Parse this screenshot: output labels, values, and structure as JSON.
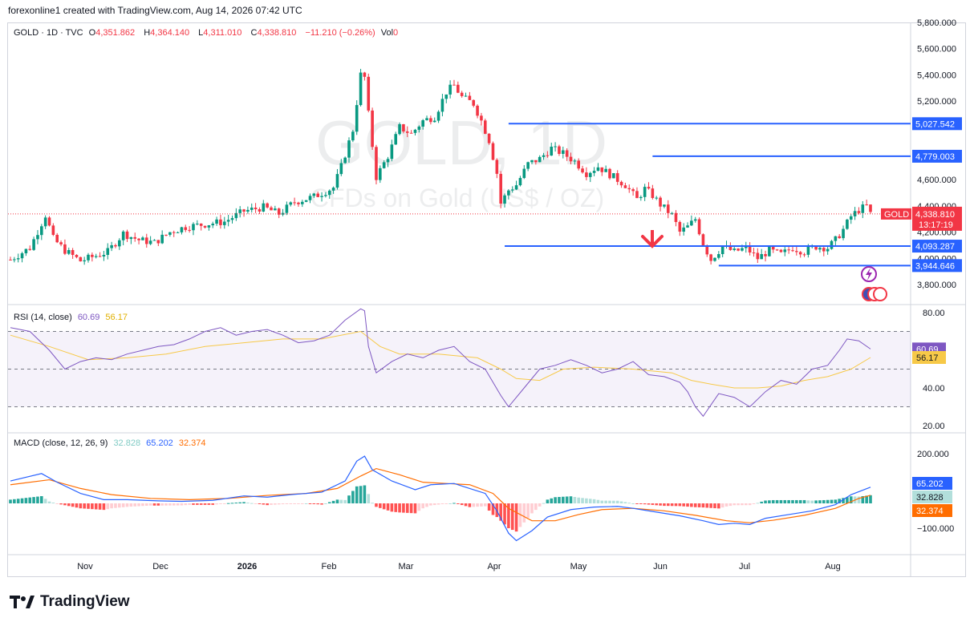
{
  "header": {
    "attribution": "forexonline1 created with TradingView.com, Aug 14, 2026 07:42 UTC"
  },
  "main_legend": {
    "symbol": "GOLD · 1D · TVC",
    "open_label": "O",
    "open": "4,351.862",
    "high_label": "H",
    "high": "4,364.140",
    "low_label": "L",
    "low": "4,311.010",
    "close_label": "C",
    "close": "4,338.810",
    "change": "−11.210 (−0.26%)",
    "vol_label": "Vol",
    "vol": "0"
  },
  "watermark": {
    "line1": "GOLD, 1D",
    "line2": "CFDs on Gold (US$ / OZ)"
  },
  "rsi_legend": {
    "label": "RSI (14, close)",
    "value1": "60.69",
    "value2": "56.17"
  },
  "macd_legend": {
    "label": "MACD (close, 12, 26, 9)",
    "value1": "32.828",
    "value2": "65.202",
    "value3": "32.374"
  },
  "footer": {
    "brand": "TradingView"
  },
  "colors": {
    "up": "#089981",
    "down": "#f23645",
    "hline": "#2962ff",
    "rsi": "#7e57c2",
    "rsi_ma": "#f7c948",
    "macd": "#2962ff",
    "signal": "#ff6d00"
  },
  "chart_data": [
    {
      "type": "candlestick",
      "title": "GOLD · 1D · TVC",
      "x_ticks": [
        "Nov",
        "Dec",
        "2026",
        "Feb",
        "Mar",
        "Apr",
        "May",
        "Jun",
        "Jul",
        "Aug"
      ],
      "y_ticks": [
        "5,800.000",
        "5,600.000",
        "5,400.000",
        "5,200.000",
        "4,800.000",
        "4,600.000",
        "4,400.000",
        "4,200.000",
        "4,000.000",
        "3,800.000"
      ],
      "ylim": [
        3800,
        5800
      ],
      "price_path": [
        [
          0,
          3990
        ],
        [
          5,
          4080
        ],
        [
          9,
          4330
        ],
        [
          11,
          4150
        ],
        [
          14,
          4060
        ],
        [
          18,
          3980
        ],
        [
          21,
          4010
        ],
        [
          25,
          4050
        ],
        [
          29,
          4190
        ],
        [
          33,
          4140
        ],
        [
          37,
          4120
        ],
        [
          41,
          4200
        ],
        [
          45,
          4240
        ],
        [
          50,
          4260
        ],
        [
          55,
          4280
        ],
        [
          60,
          4360
        ],
        [
          65,
          4390
        ],
        [
          69,
          4340
        ],
        [
          73,
          4430
        ],
        [
          78,
          4470
        ],
        [
          83,
          4540
        ],
        [
          85,
          4700
        ],
        [
          88,
          4980
        ],
        [
          90,
          5400
        ],
        [
          91,
          5380
        ],
        [
          92,
          5100
        ],
        [
          94,
          4620
        ],
        [
          97,
          4780
        ],
        [
          100,
          5000
        ],
        [
          103,
          4950
        ],
        [
          106,
          5050
        ],
        [
          109,
          5080
        ],
        [
          112,
          5270
        ],
        [
          114,
          5320
        ],
        [
          116,
          5230
        ],
        [
          119,
          5180
        ],
        [
          121,
          5050
        ],
        [
          123,
          4900
        ],
        [
          125,
          4650
        ],
        [
          126,
          4420
        ],
        [
          128,
          4520
        ],
        [
          130,
          4560
        ],
        [
          133,
          4720
        ],
        [
          136,
          4760
        ],
        [
          139,
          4840
        ],
        [
          142,
          4800
        ],
        [
          145,
          4740
        ],
        [
          148,
          4650
        ],
        [
          151,
          4700
        ],
        [
          155,
          4620
        ],
        [
          158,
          4560
        ],
        [
          161,
          4450
        ],
        [
          163,
          4530
        ],
        [
          165,
          4480
        ],
        [
          167,
          4410
        ],
        [
          170,
          4330
        ],
        [
          172,
          4200
        ],
        [
          174,
          4240
        ],
        [
          176,
          4300
        ],
        [
          178,
          4110
        ],
        [
          180,
          3990
        ],
        [
          183,
          4090
        ],
        [
          186,
          4050
        ],
        [
          189,
          4080
        ],
        [
          192,
          4000
        ],
        [
          195,
          4060
        ],
        [
          198,
          4030
        ],
        [
          201,
          4080
        ],
        [
          204,
          4050
        ],
        [
          207,
          4090
        ],
        [
          210,
          4080
        ],
        [
          212,
          4140
        ],
        [
          214,
          4220
        ],
        [
          216,
          4320
        ],
        [
          218,
          4370
        ],
        [
          220,
          4400
        ],
        [
          221,
          4339
        ]
      ],
      "horizontal_levels": [
        "5,027.542",
        "4,779.003",
        "4,093.287",
        "3,944.646"
      ],
      "last_price": "4,338.810",
      "last_label": "GOLD",
      "countdown": "13:17:19"
    },
    {
      "type": "line",
      "name": "RSI (14, close)",
      "y_ticks": [
        "80.00",
        "40.00",
        "20.00"
      ],
      "ylim": [
        20,
        80
      ],
      "bands": [
        70,
        50,
        30
      ],
      "rsi": [
        [
          0,
          72
        ],
        [
          5,
          70
        ],
        [
          10,
          60
        ],
        [
          14,
          50
        ],
        [
          18,
          54
        ],
        [
          22,
          56
        ],
        [
          26,
          55
        ],
        [
          30,
          58
        ],
        [
          34,
          60
        ],
        [
          38,
          62
        ],
        [
          42,
          63
        ],
        [
          46,
          66
        ],
        [
          50,
          70
        ],
        [
          54,
          72
        ],
        [
          58,
          68
        ],
        [
          62,
          70
        ],
        [
          66,
          71
        ],
        [
          70,
          68
        ],
        [
          74,
          64
        ],
        [
          78,
          65
        ],
        [
          82,
          68
        ],
        [
          86,
          76
        ],
        [
          90,
          82
        ],
        [
          91,
          81
        ],
        [
          92,
          62
        ],
        [
          94,
          48
        ],
        [
          98,
          54
        ],
        [
          102,
          58
        ],
        [
          106,
          56
        ],
        [
          110,
          60
        ],
        [
          114,
          62
        ],
        [
          118,
          54
        ],
        [
          122,
          50
        ],
        [
          126,
          36
        ],
        [
          128,
          30
        ],
        [
          132,
          40
        ],
        [
          136,
          50
        ],
        [
          140,
          52
        ],
        [
          144,
          55
        ],
        [
          148,
          52
        ],
        [
          152,
          48
        ],
        [
          156,
          50
        ],
        [
          160,
          54
        ],
        [
          164,
          47
        ],
        [
          168,
          46
        ],
        [
          172,
          43
        ],
        [
          174,
          38
        ],
        [
          176,
          30
        ],
        [
          178,
          25
        ],
        [
          182,
          37
        ],
        [
          186,
          35
        ],
        [
          190,
          30
        ],
        [
          194,
          38
        ],
        [
          198,
          44
        ],
        [
          202,
          42
        ],
        [
          206,
          50
        ],
        [
          210,
          52
        ],
        [
          213,
          60
        ],
        [
          215,
          66
        ],
        [
          218,
          65
        ],
        [
          221,
          60.69
        ]
      ],
      "rsi_ma": [
        [
          0,
          68
        ],
        [
          10,
          62
        ],
        [
          20,
          55
        ],
        [
          30,
          56
        ],
        [
          40,
          58
        ],
        [
          50,
          62
        ],
        [
          60,
          64
        ],
        [
          70,
          66
        ],
        [
          80,
          66
        ],
        [
          90,
          70
        ],
        [
          95,
          62
        ],
        [
          100,
          58
        ],
        [
          110,
          58
        ],
        [
          120,
          56
        ],
        [
          126,
          50
        ],
        [
          130,
          45
        ],
        [
          136,
          44
        ],
        [
          142,
          50
        ],
        [
          150,
          51
        ],
        [
          160,
          50
        ],
        [
          170,
          48
        ],
        [
          175,
          44
        ],
        [
          180,
          42
        ],
        [
          186,
          40
        ],
        [
          192,
          40
        ],
        [
          198,
          41
        ],
        [
          204,
          44
        ],
        [
          210,
          46
        ],
        [
          216,
          50
        ],
        [
          221,
          56.17
        ]
      ],
      "value": "60.69",
      "ma_value": "56.17"
    },
    {
      "type": "bar",
      "name": "MACD (close, 12, 26, 9)",
      "y_ticks": [
        "200.000",
        "-100.000"
      ],
      "ylim": [
        -200,
        250
      ],
      "macd": [
        [
          0,
          90
        ],
        [
          8,
          120
        ],
        [
          12,
          85
        ],
        [
          18,
          40
        ],
        [
          24,
          15
        ],
        [
          30,
          15
        ],
        [
          38,
          10
        ],
        [
          44,
          8
        ],
        [
          52,
          12
        ],
        [
          60,
          30
        ],
        [
          66,
          25
        ],
        [
          72,
          35
        ],
        [
          80,
          45
        ],
        [
          86,
          90
        ],
        [
          89,
          170
        ],
        [
          91,
          190
        ],
        [
          93,
          135
        ],
        [
          98,
          90
        ],
        [
          104,
          55
        ],
        [
          108,
          75
        ],
        [
          114,
          80
        ],
        [
          118,
          60
        ],
        [
          122,
          40
        ],
        [
          125,
          -30
        ],
        [
          128,
          -120
        ],
        [
          130,
          -150
        ],
        [
          134,
          -110
        ],
        [
          138,
          -55
        ],
        [
          144,
          -25
        ],
        [
          150,
          -15
        ],
        [
          156,
          -12
        ],
        [
          160,
          -20
        ],
        [
          166,
          -35
        ],
        [
          172,
          -50
        ],
        [
          178,
          -70
        ],
        [
          182,
          -85
        ],
        [
          186,
          -80
        ],
        [
          190,
          -85
        ],
        [
          194,
          -60
        ],
        [
          200,
          -45
        ],
        [
          206,
          -30
        ],
        [
          212,
          -5
        ],
        [
          216,
          35
        ],
        [
          221,
          65.202
        ]
      ],
      "signal": [
        [
          0,
          75
        ],
        [
          10,
          95
        ],
        [
          18,
          60
        ],
        [
          26,
          35
        ],
        [
          36,
          20
        ],
        [
          46,
          15
        ],
        [
          56,
          20
        ],
        [
          66,
          32
        ],
        [
          76,
          40
        ],
        [
          84,
          60
        ],
        [
          90,
          110
        ],
        [
          94,
          140
        ],
        [
          100,
          115
        ],
        [
          106,
          85
        ],
        [
          112,
          80
        ],
        [
          118,
          75
        ],
        [
          124,
          40
        ],
        [
          128,
          -20
        ],
        [
          134,
          -70
        ],
        [
          140,
          -70
        ],
        [
          146,
          -45
        ],
        [
          152,
          -25
        ],
        [
          160,
          -20
        ],
        [
          168,
          -30
        ],
        [
          176,
          -48
        ],
        [
          184,
          -70
        ],
        [
          190,
          -78
        ],
        [
          196,
          -68
        ],
        [
          204,
          -48
        ],
        [
          212,
          -20
        ],
        [
          218,
          20
        ],
        [
          221,
          32.374
        ]
      ],
      "histogram_value": "32.828",
      "macd_value": "65.202",
      "signal_value": "32.374"
    }
  ]
}
